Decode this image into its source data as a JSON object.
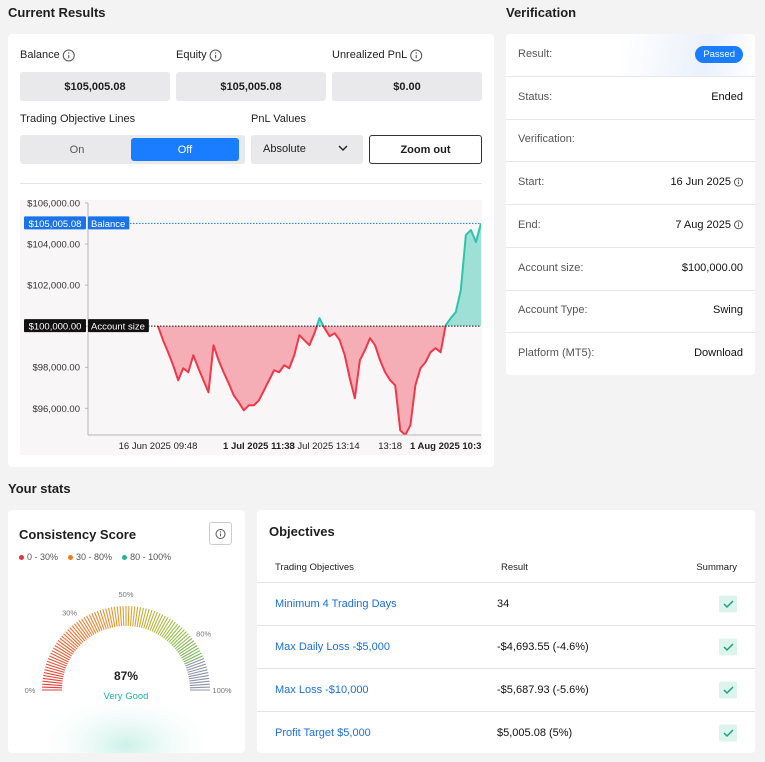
{
  "current_results": {
    "title": "Current Results",
    "fields": [
      {
        "label": "Balance",
        "value": "$105,005.08"
      },
      {
        "label": "Equity",
        "value": "$105,005.08"
      },
      {
        "label": "Unrealized PnL",
        "value": "$0.00"
      }
    ],
    "objective_lines": {
      "label": "Trading Objective Lines",
      "options": [
        "On",
        "Off"
      ],
      "selected": 1
    },
    "pnl_values": {
      "label": "PnL Values",
      "selected": "Absolute"
    },
    "zoom_button": "Zoom out"
  },
  "chart_data": {
    "type": "area",
    "categories": [
      "16 Jun 2025 09:48",
      null,
      null,
      null,
      null,
      null,
      null,
      null,
      null,
      null,
      null,
      null,
      null,
      null,
      null,
      null,
      null,
      null,
      null,
      null,
      "1 Jul 2025 11:33",
      null,
      null,
      null,
      null,
      null,
      null,
      null,
      null,
      null,
      null,
      null,
      null,
      "8 Jul 2025 13:14",
      null,
      null,
      null,
      null,
      null,
      null,
      null,
      null,
      null,
      null,
      null,
      null,
      "13:18",
      null,
      null,
      null,
      null,
      null,
      null,
      null,
      null,
      null,
      null,
      "1 Aug 2025 10:3",
      null,
      null,
      null,
      null,
      null,
      null,
      null
    ],
    "series": [
      {
        "color_above": "#2cc4ad",
        "color_below": "#f0384a",
        "values": [
          100000,
          99317,
          98732,
          98098,
          97366,
          97951,
          97756,
          98585,
          97951,
          97366,
          96780,
          99073,
          98341,
          97756,
          97220,
          96634,
          96293,
          95902,
          96146,
          96146,
          96390,
          96878,
          97366,
          97854,
          97756,
          98098,
          97951,
          98585,
          99561,
          99317,
          99073,
          99659,
          100390,
          99902,
          99512,
          99659,
          99317,
          98585,
          97463,
          96488,
          98341,
          98829,
          99415,
          99073,
          98341,
          97756,
          97366,
          97122,
          94927,
          94700,
          95171,
          97122,
          97951,
          98244,
          98732,
          98927,
          98732,
          100049,
          100390,
          100683,
          101756,
          104439,
          104683,
          104098,
          105005.08
        ]
      }
    ],
    "ylim": [
      94700,
      106000
    ],
    "yticks": [
      {
        "value": 96000,
        "label": "$96,000.00"
      },
      {
        "value": 98000,
        "label": "$98,000.00"
      },
      {
        "value": 100000,
        "label": "$100,000.00"
      },
      {
        "value": 102000,
        "label": "$102,000.00"
      },
      {
        "value": 104000,
        "label": "$104,000.00"
      },
      {
        "value": 106000,
        "label": "$106,000.00"
      }
    ],
    "annotations": [
      {
        "label": "Balance",
        "value": 105005.08,
        "value_label": "$105,005.08",
        "color": "#1a73e8"
      },
      {
        "label": "Account size",
        "value": 100000,
        "value_label": "$100,000.00",
        "color": "#111111"
      }
    ]
  },
  "verification": {
    "title": "Verification",
    "rows": [
      {
        "label": "Result:",
        "value": "Passed"
      },
      {
        "label": "Status:",
        "value": "Ended"
      },
      {
        "label": "Verification:"
      },
      {
        "label": "Start:",
        "value": "16 Jun 2025"
      },
      {
        "label": "End:",
        "value": "7 Aug 2025"
      },
      {
        "label": "Account size:",
        "value": "$100,000.00"
      },
      {
        "label": "Account Type:",
        "value": "Swing"
      },
      {
        "label": "Platform (MT5):",
        "value": "Download"
      }
    ]
  },
  "stats": {
    "title": "Your stats"
  },
  "consistency": {
    "title": "Consistency Score",
    "legend": [
      {
        "label": "0 - 30%",
        "color": "#e8333f"
      },
      {
        "label": "30 - 80%",
        "color": "#f07a22"
      },
      {
        "label": "80 - 100%",
        "color": "#20b2a0"
      }
    ],
    "ticks": [
      {
        "value": 0,
        "label": "0%"
      },
      {
        "value": 30,
        "label": "30%"
      },
      {
        "value": 50,
        "label": "50%"
      },
      {
        "value": 80,
        "label": "80%"
      },
      {
        "value": 100,
        "label": "100%"
      }
    ],
    "value": 87,
    "value_label": "87%",
    "rating": "Very Good"
  },
  "objectives": {
    "title": "Objectives",
    "headers": [
      "Trading Objectives",
      "Result",
      "Summary"
    ],
    "rows": [
      [
        "Minimum 4 Trading Days",
        "34"
      ],
      [
        "Max Daily Loss -$5,000",
        "-$4,693.55 (-4.6%)"
      ],
      [
        "Max Loss -$10,000",
        "-$5,687.93 (-5.6%)"
      ],
      [
        "Profit Target $5,000",
        "$5,005.08 (5%)"
      ]
    ]
  }
}
